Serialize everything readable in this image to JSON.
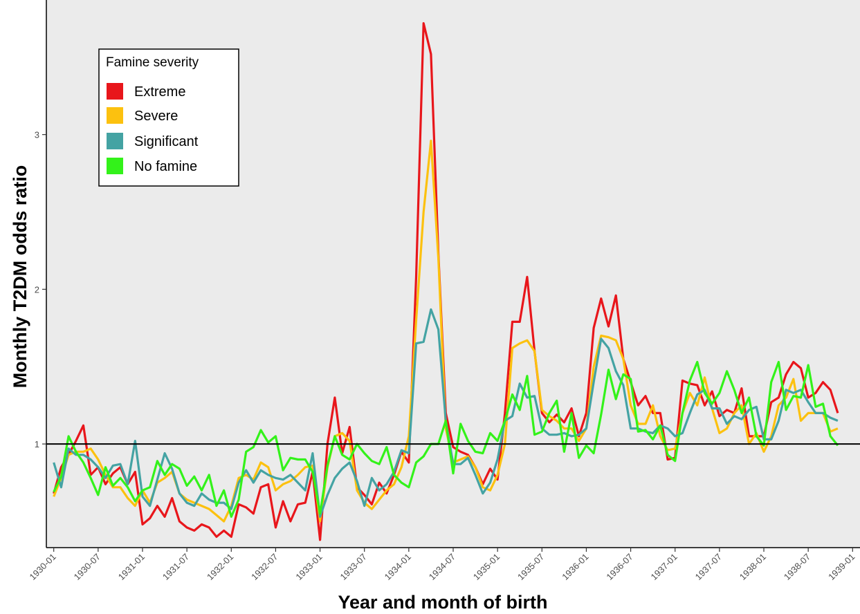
{
  "chart_data": {
    "type": "line",
    "xlabel": "Year and month of birth",
    "ylabel": "Monthly T2DM odds ratio",
    "x_tick_labels": [
      "1930-01",
      "1930-07",
      "1931-01",
      "1931-07",
      "1932-01",
      "1932-07",
      "1933-01",
      "1933-07",
      "1934-01",
      "1934-07",
      "1935-01",
      "1935-07",
      "1936-01",
      "1936-07",
      "1937-01",
      "1937-07",
      "1938-01",
      "1938-07",
      "1939-01"
    ],
    "y_ticks": [
      1,
      2,
      3
    ],
    "ylim": [
      0.33,
      3.87
    ],
    "x_range_months": [
      -1,
      109
    ],
    "reference_line": 1,
    "grid": false,
    "legend": {
      "title": "Famine severity",
      "position": "top-left",
      "entries": [
        "Extreme",
        "Severe",
        "Significant",
        "No famine"
      ]
    },
    "colors": {
      "Extreme": "#e8161b",
      "Severe": "#fcc10f",
      "Significant": "#44a3a3",
      "No famine": "#33f21a",
      "background": "#ebebeb"
    },
    "series": [
      {
        "name": "Extreme",
        "color": "#e8161b",
        "x": [
          0,
          1,
          2,
          3,
          4,
          5,
          6,
          7,
          8,
          9,
          10,
          11,
          12,
          13,
          14,
          15,
          16,
          17,
          18,
          19,
          20,
          21,
          22,
          23,
          24,
          25,
          26,
          27,
          28,
          29,
          30,
          31,
          32,
          33,
          34,
          35,
          36,
          37,
          38,
          39,
          40,
          41,
          42,
          43,
          44,
          45,
          46,
          47,
          48,
          49,
          50,
          51,
          52,
          53,
          54,
          55,
          56,
          57,
          58,
          59,
          60,
          61,
          62,
          63,
          64,
          65,
          66,
          67,
          68,
          69,
          70,
          71,
          72,
          73,
          74,
          75,
          76,
          77,
          78,
          79,
          80,
          81,
          82,
          83,
          84,
          85,
          86,
          87,
          88,
          89,
          90,
          91,
          92,
          93,
          94,
          95,
          96,
          97,
          98,
          99,
          100,
          101,
          102,
          103,
          104,
          105,
          106
        ],
        "y": [
          0.68,
          0.85,
          0.93,
          1.02,
          1.12,
          0.8,
          0.85,
          0.74,
          0.81,
          0.85,
          0.74,
          0.82,
          0.48,
          0.52,
          0.6,
          0.53,
          0.65,
          0.5,
          0.46,
          0.44,
          0.48,
          0.46,
          0.4,
          0.44,
          0.4,
          0.61,
          0.59,
          0.55,
          0.72,
          0.74,
          0.46,
          0.63,
          0.5,
          0.61,
          0.62,
          0.82,
          0.38,
          1.0,
          1.3,
          0.94,
          1.11,
          0.72,
          0.67,
          0.61,
          0.75,
          0.68,
          0.8,
          0.95,
          0.88,
          2.08,
          3.72,
          3.52,
          2.23,
          1.2,
          0.98,
          0.95,
          0.93,
          0.85,
          0.74,
          0.84,
          0.77,
          1.2,
          1.79,
          1.79,
          2.08,
          1.6,
          1.2,
          1.14,
          1.19,
          1.14,
          1.23,
          1.05,
          1.2,
          1.75,
          1.94,
          1.76,
          1.96,
          1.55,
          1.4,
          1.25,
          1.31,
          1.2,
          1.2,
          0.9,
          0.91,
          1.41,
          1.39,
          1.38,
          1.25,
          1.34,
          1.18,
          1.22,
          1.2,
          1.36,
          1.05,
          1.05,
          1.05,
          1.27,
          1.3,
          1.45,
          1.53,
          1.49,
          1.3,
          1.33,
          1.4,
          1.35,
          1.2
        ]
      },
      {
        "name": "Severe",
        "color": "#fcc10f",
        "x": [
          0,
          1,
          2,
          3,
          4,
          5,
          6,
          7,
          8,
          9,
          10,
          11,
          12,
          13,
          14,
          15,
          16,
          17,
          18,
          19,
          20,
          21,
          22,
          23,
          24,
          25,
          26,
          27,
          28,
          29,
          30,
          31,
          32,
          33,
          34,
          35,
          36,
          37,
          38,
          39,
          40,
          41,
          42,
          43,
          44,
          45,
          46,
          47,
          48,
          49,
          50,
          51,
          52,
          53,
          54,
          55,
          56,
          57,
          58,
          59,
          60,
          61,
          62,
          63,
          64,
          65,
          66,
          67,
          68,
          69,
          70,
          71,
          72,
          73,
          74,
          75,
          76,
          77,
          78,
          79,
          80,
          81,
          82,
          83,
          84,
          85,
          86,
          87,
          88,
          89,
          90,
          91,
          92,
          93,
          94,
          95,
          96,
          97,
          98,
          99,
          100,
          101,
          102,
          103,
          104,
          105,
          106
        ],
        "y": [
          0.66,
          0.78,
          0.93,
          0.95,
          0.95,
          0.97,
          0.9,
          0.8,
          0.72,
          0.72,
          0.65,
          0.6,
          0.7,
          0.62,
          0.75,
          0.78,
          0.82,
          0.68,
          0.64,
          0.62,
          0.6,
          0.58,
          0.54,
          0.5,
          0.6,
          0.78,
          0.8,
          0.77,
          0.88,
          0.85,
          0.7,
          0.74,
          0.76,
          0.8,
          0.85,
          0.86,
          0.5,
          0.85,
          1.05,
          1.07,
          1.02,
          0.7,
          0.62,
          0.58,
          0.64,
          0.7,
          0.74,
          0.85,
          1.05,
          1.8,
          2.5,
          2.96,
          2.2,
          1.1,
          0.88,
          0.9,
          0.92,
          0.85,
          0.72,
          0.7,
          0.8,
          1.0,
          1.62,
          1.65,
          1.67,
          1.6,
          1.22,
          1.18,
          1.15,
          1.1,
          1.1,
          1.02,
          1.1,
          1.5,
          1.7,
          1.69,
          1.67,
          1.55,
          1.25,
          1.13,
          1.13,
          1.25,
          1.05,
          0.96,
          0.97,
          1.2,
          1.33,
          1.25,
          1.43,
          1.23,
          1.07,
          1.1,
          1.2,
          1.25,
          1.0,
          1.07,
          0.95,
          1.05,
          1.25,
          1.3,
          1.42,
          1.15,
          1.2,
          1.2,
          1.2,
          1.08,
          1.1
        ]
      },
      {
        "name": "Significant",
        "color": "#44a3a3",
        "x": [
          0,
          1,
          2,
          3,
          4,
          5,
          6,
          7,
          8,
          9,
          10,
          11,
          12,
          13,
          14,
          15,
          16,
          17,
          18,
          19,
          20,
          21,
          22,
          23,
          24,
          25,
          26,
          27,
          28,
          29,
          30,
          31,
          32,
          33,
          34,
          35,
          36,
          37,
          38,
          39,
          40,
          41,
          42,
          43,
          44,
          45,
          46,
          47,
          48,
          49,
          50,
          51,
          52,
          53,
          54,
          55,
          56,
          57,
          58,
          59,
          60,
          61,
          62,
          63,
          64,
          65,
          66,
          67,
          68,
          69,
          70,
          71,
          72,
          73,
          74,
          75,
          76,
          77,
          78,
          79,
          80,
          81,
          82,
          83,
          84,
          85,
          86,
          87,
          88,
          89,
          90,
          91,
          92,
          93,
          94,
          95,
          96,
          97,
          98,
          99,
          100,
          101,
          102,
          103,
          104,
          105,
          106
        ],
        "y": [
          0.88,
          0.72,
          0.97,
          0.93,
          0.93,
          0.9,
          0.85,
          0.78,
          0.86,
          0.87,
          0.74,
          1.02,
          0.66,
          0.6,
          0.77,
          0.94,
          0.84,
          0.68,
          0.62,
          0.6,
          0.68,
          0.64,
          0.62,
          0.62,
          0.58,
          0.75,
          0.83,
          0.75,
          0.83,
          0.8,
          0.78,
          0.77,
          0.8,
          0.75,
          0.7,
          0.94,
          0.53,
          0.67,
          0.78,
          0.84,
          0.88,
          0.76,
          0.6,
          0.78,
          0.7,
          0.74,
          0.82,
          0.96,
          0.94,
          1.65,
          1.66,
          1.87,
          1.74,
          1.15,
          0.87,
          0.87,
          0.91,
          0.8,
          0.68,
          0.75,
          0.9,
          1.15,
          1.18,
          1.39,
          1.3,
          1.31,
          1.1,
          1.06,
          1.06,
          1.07,
          1.05,
          1.06,
          1.1,
          1.4,
          1.68,
          1.62,
          1.47,
          1.38,
          1.1,
          1.1,
          1.08,
          1.07,
          1.12,
          1.1,
          1.05,
          1.07,
          1.2,
          1.32,
          1.35,
          1.23,
          1.23,
          1.13,
          1.18,
          1.16,
          1.22,
          1.24,
          1.03,
          1.03,
          1.15,
          1.35,
          1.33,
          1.35,
          1.27,
          1.2,
          1.2,
          1.17,
          1.15
        ]
      },
      {
        "name": "No famine",
        "color": "#33f21a",
        "x": [
          0,
          1,
          2,
          3,
          4,
          5,
          6,
          7,
          8,
          9,
          10,
          11,
          12,
          13,
          14,
          15,
          16,
          17,
          18,
          19,
          20,
          21,
          22,
          23,
          24,
          25,
          26,
          27,
          28,
          29,
          30,
          31,
          32,
          33,
          34,
          35,
          36,
          37,
          38,
          39,
          40,
          41,
          42,
          43,
          44,
          45,
          46,
          47,
          48,
          49,
          50,
          51,
          52,
          53,
          54,
          55,
          56,
          57,
          58,
          59,
          60,
          61,
          62,
          63,
          64,
          65,
          66,
          67,
          68,
          69,
          70,
          71,
          72,
          73,
          74,
          75,
          76,
          77,
          78,
          79,
          80,
          81,
          82,
          83,
          84,
          85,
          86,
          87,
          88,
          89,
          90,
          91,
          92,
          93,
          94,
          95,
          96,
          97,
          98,
          99,
          100,
          101,
          102,
          103,
          104,
          105,
          106
        ],
        "y": [
          0.69,
          0.79,
          1.05,
          0.95,
          0.88,
          0.78,
          0.67,
          0.85,
          0.73,
          0.78,
          0.72,
          0.63,
          0.7,
          0.72,
          0.89,
          0.8,
          0.87,
          0.84,
          0.73,
          0.79,
          0.7,
          0.8,
          0.6,
          0.7,
          0.53,
          0.64,
          0.95,
          0.98,
          1.09,
          1.01,
          1.05,
          0.83,
          0.91,
          0.9,
          0.9,
          0.82,
          0.55,
          0.86,
          1.05,
          0.93,
          0.9,
          1.0,
          0.94,
          0.89,
          0.87,
          0.98,
          0.8,
          0.75,
          0.72,
          0.88,
          0.92,
          1.0,
          1.0,
          1.15,
          0.81,
          1.13,
          1.02,
          0.95,
          0.94,
          1.07,
          1.02,
          1.15,
          1.32,
          1.22,
          1.44,
          1.06,
          1.08,
          1.2,
          1.28,
          0.95,
          1.2,
          0.91,
          0.99,
          0.94,
          1.19,
          1.48,
          1.29,
          1.45,
          1.42,
          1.08,
          1.09,
          1.03,
          1.12,
          0.93,
          0.89,
          1.2,
          1.41,
          1.53,
          1.33,
          1.26,
          1.33,
          1.47,
          1.35,
          1.2,
          1.3,
          1.05,
          0.99,
          1.4,
          1.53,
          1.22,
          1.31,
          1.3,
          1.51,
          1.24,
          1.26,
          1.05,
          0.99
        ]
      }
    ]
  }
}
